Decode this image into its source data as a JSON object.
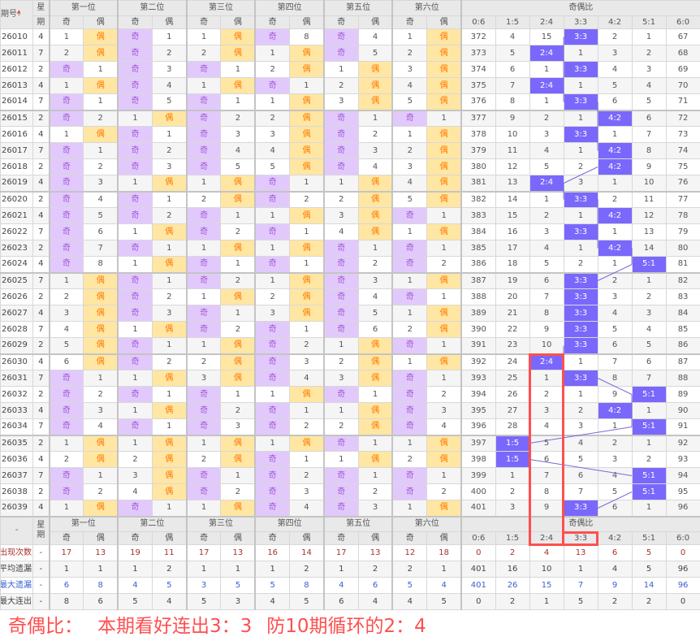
{
  "header": {
    "issue": "期号",
    "weekday": "星期",
    "weekday_top": "星",
    "weekday_bottom": "期",
    "positions": [
      "第一位",
      "第二位",
      "第三位",
      "第四位",
      "第五位",
      "第六位"
    ],
    "odd": "奇",
    "even": "偶",
    "ratio_title": "奇偶比",
    "ratios": [
      "0:6",
      "1:5",
      "2:4",
      "3:3",
      "4:2",
      "5:1",
      "6:0"
    ]
  },
  "colors": {
    "odd_bg": "#e2c9fc",
    "even_bg": "#ffe6a3",
    "hit_bg": "#7a68fc",
    "annotation": "#ff4f4f"
  },
  "rows": [
    {
      "issue": "26010",
      "wd": "4",
      "pos": [
        [
          "1",
          "偶"
        ],
        [
          "奇",
          "1"
        ],
        [
          "1",
          "偶"
        ],
        [
          "奇",
          "8"
        ],
        [
          "奇",
          "4"
        ],
        [
          "1",
          "偶"
        ]
      ],
      "ratio": [
        "372",
        "4",
        "15",
        "3:3",
        "2",
        "1",
        "67"
      ]
    },
    {
      "issue": "26011",
      "wd": "7",
      "pos": [
        [
          "2",
          "偶"
        ],
        [
          "奇",
          "2"
        ],
        [
          "2",
          "偶"
        ],
        [
          "1",
          "偶"
        ],
        [
          "奇",
          "5"
        ],
        [
          "2",
          "偶"
        ]
      ],
      "ratio": [
        "373",
        "5",
        "2:4",
        "1",
        "3",
        "2",
        "68"
      ]
    },
    {
      "issue": "26012",
      "wd": "2",
      "pos": [
        [
          "奇",
          "1"
        ],
        [
          "奇",
          "3"
        ],
        [
          "奇",
          "1"
        ],
        [
          "2",
          "偶"
        ],
        [
          "1",
          "偶"
        ],
        [
          "3",
          "偶"
        ]
      ],
      "ratio": [
        "374",
        "6",
        "1",
        "3:3",
        "4",
        "3",
        "69"
      ]
    },
    {
      "issue": "26013",
      "wd": "4",
      "pos": [
        [
          "1",
          "偶"
        ],
        [
          "奇",
          "4"
        ],
        [
          "1",
          "偶"
        ],
        [
          "奇",
          "1"
        ],
        [
          "2",
          "偶"
        ],
        [
          "4",
          "偶"
        ]
      ],
      "ratio": [
        "375",
        "7",
        "2:4",
        "1",
        "5",
        "4",
        "70"
      ]
    },
    {
      "issue": "26014",
      "wd": "7",
      "pos": [
        [
          "奇",
          "1"
        ],
        [
          "奇",
          "5"
        ],
        [
          "奇",
          "1"
        ],
        [
          "1",
          "偶"
        ],
        [
          "3",
          "偶"
        ],
        [
          "5",
          "偶"
        ]
      ],
      "ratio": [
        "376",
        "8",
        "1",
        "3:3",
        "6",
        "5",
        "71"
      ]
    },
    {
      "issue": "26015",
      "wd": "2",
      "pos": [
        [
          "奇",
          "2"
        ],
        [
          "1",
          "偶"
        ],
        [
          "奇",
          "2"
        ],
        [
          "2",
          "偶"
        ],
        [
          "奇",
          "1"
        ],
        [
          "奇",
          "1"
        ]
      ],
      "ratio": [
        "377",
        "9",
        "2",
        "1",
        "4:2",
        "6",
        "72"
      ]
    },
    {
      "issue": "26016",
      "wd": "4",
      "pos": [
        [
          "1",
          "偶"
        ],
        [
          "奇",
          "1"
        ],
        [
          "奇",
          "3"
        ],
        [
          "3",
          "偶"
        ],
        [
          "奇",
          "2"
        ],
        [
          "1",
          "偶"
        ]
      ],
      "ratio": [
        "378",
        "10",
        "3",
        "3:3",
        "1",
        "7",
        "73"
      ]
    },
    {
      "issue": "26017",
      "wd": "7",
      "pos": [
        [
          "奇",
          "1"
        ],
        [
          "奇",
          "2"
        ],
        [
          "奇",
          "4"
        ],
        [
          "4",
          "偶"
        ],
        [
          "奇",
          "3"
        ],
        [
          "2",
          "偶"
        ]
      ],
      "ratio": [
        "379",
        "11",
        "4",
        "1",
        "4:2",
        "8",
        "74"
      ]
    },
    {
      "issue": "26018",
      "wd": "2",
      "pos": [
        [
          "奇",
          "2"
        ],
        [
          "奇",
          "3"
        ],
        [
          "奇",
          "5"
        ],
        [
          "5",
          "偶"
        ],
        [
          "奇",
          "4"
        ],
        [
          "3",
          "偶"
        ]
      ],
      "ratio": [
        "380",
        "12",
        "5",
        "2",
        "4:2",
        "9",
        "75"
      ]
    },
    {
      "issue": "26019",
      "wd": "4",
      "pos": [
        [
          "奇",
          "3"
        ],
        [
          "1",
          "偶"
        ],
        [
          "1",
          "偶"
        ],
        [
          "奇",
          "1"
        ],
        [
          "1",
          "偶"
        ],
        [
          "4",
          "偶"
        ]
      ],
      "ratio": [
        "381",
        "13",
        "2:4",
        "3",
        "1",
        "10",
        "76"
      ]
    },
    {
      "issue": "26020",
      "wd": "2",
      "pos": [
        [
          "奇",
          "4"
        ],
        [
          "奇",
          "1"
        ],
        [
          "2",
          "偶"
        ],
        [
          "奇",
          "2"
        ],
        [
          "2",
          "偶"
        ],
        [
          "5",
          "偶"
        ]
      ],
      "ratio": [
        "382",
        "14",
        "1",
        "3:3",
        "2",
        "11",
        "77"
      ]
    },
    {
      "issue": "26021",
      "wd": "4",
      "pos": [
        [
          "奇",
          "5"
        ],
        [
          "奇",
          "2"
        ],
        [
          "奇",
          "1"
        ],
        [
          "1",
          "偶"
        ],
        [
          "3",
          "偶"
        ],
        [
          "奇",
          "1"
        ]
      ],
      "ratio": [
        "383",
        "15",
        "2",
        "1",
        "4:2",
        "12",
        "78"
      ]
    },
    {
      "issue": "26022",
      "wd": "7",
      "pos": [
        [
          "奇",
          "6"
        ],
        [
          "1",
          "偶"
        ],
        [
          "奇",
          "2"
        ],
        [
          "奇",
          "1"
        ],
        [
          "4",
          "偶"
        ],
        [
          "1",
          "偶"
        ]
      ],
      "ratio": [
        "384",
        "16",
        "3",
        "3:3",
        "1",
        "13",
        "79"
      ]
    },
    {
      "issue": "26023",
      "wd": "2",
      "pos": [
        [
          "奇",
          "7"
        ],
        [
          "奇",
          "1"
        ],
        [
          "1",
          "偶"
        ],
        [
          "1",
          "偶"
        ],
        [
          "奇",
          "1"
        ],
        [
          "奇",
          "1"
        ]
      ],
      "ratio": [
        "385",
        "17",
        "4",
        "1",
        "4:2",
        "14",
        "80"
      ]
    },
    {
      "issue": "26024",
      "wd": "4",
      "pos": [
        [
          "奇",
          "8"
        ],
        [
          "1",
          "偶"
        ],
        [
          "奇",
          "1"
        ],
        [
          "奇",
          "1"
        ],
        [
          "奇",
          "2"
        ],
        [
          "奇",
          "2"
        ]
      ],
      "ratio": [
        "386",
        "18",
        "5",
        "2",
        "1",
        "5:1",
        "81"
      ]
    },
    {
      "issue": "26025",
      "wd": "7",
      "pos": [
        [
          "1",
          "偶"
        ],
        [
          "奇",
          "1"
        ],
        [
          "奇",
          "2"
        ],
        [
          "1",
          "偶"
        ],
        [
          "奇",
          "3"
        ],
        [
          "1",
          "偶"
        ]
      ],
      "ratio": [
        "387",
        "19",
        "6",
        "3:3",
        "2",
        "1",
        "82"
      ]
    },
    {
      "issue": "26026",
      "wd": "2",
      "pos": [
        [
          "2",
          "偶"
        ],
        [
          "奇",
          "2"
        ],
        [
          "1",
          "偶"
        ],
        [
          "2",
          "偶"
        ],
        [
          "奇",
          "4"
        ],
        [
          "奇",
          "1"
        ]
      ],
      "ratio": [
        "388",
        "20",
        "7",
        "3:3",
        "3",
        "2",
        "83"
      ]
    },
    {
      "issue": "26027",
      "wd": "4",
      "pos": [
        [
          "3",
          "偶"
        ],
        [
          "奇",
          "3"
        ],
        [
          "奇",
          "1"
        ],
        [
          "3",
          "偶"
        ],
        [
          "奇",
          "5"
        ],
        [
          "1",
          "偶"
        ]
      ],
      "ratio": [
        "389",
        "21",
        "8",
        "3:3",
        "4",
        "3",
        "84"
      ]
    },
    {
      "issue": "26028",
      "wd": "7",
      "pos": [
        [
          "4",
          "偶"
        ],
        [
          "1",
          "偶"
        ],
        [
          "奇",
          "2"
        ],
        [
          "奇",
          "1"
        ],
        [
          "奇",
          "6"
        ],
        [
          "2",
          "偶"
        ]
      ],
      "ratio": [
        "390",
        "22",
        "9",
        "3:3",
        "5",
        "4",
        "85"
      ]
    },
    {
      "issue": "26029",
      "wd": "2",
      "pos": [
        [
          "5",
          "偶"
        ],
        [
          "奇",
          "1"
        ],
        [
          "1",
          "偶"
        ],
        [
          "奇",
          "2"
        ],
        [
          "1",
          "偶"
        ],
        [
          "奇",
          "1"
        ]
      ],
      "ratio": [
        "391",
        "23",
        "10",
        "3:3",
        "6",
        "5",
        "86"
      ]
    },
    {
      "issue": "26030",
      "wd": "4",
      "pos": [
        [
          "6",
          "偶"
        ],
        [
          "奇",
          "2"
        ],
        [
          "2",
          "偶"
        ],
        [
          "奇",
          "3"
        ],
        [
          "2",
          "偶"
        ],
        [
          "1",
          "偶"
        ]
      ],
      "ratio": [
        "392",
        "24",
        "2:4",
        "1",
        "7",
        "6",
        "87"
      ]
    },
    {
      "issue": "26031",
      "wd": "7",
      "pos": [
        [
          "奇",
          "1"
        ],
        [
          "1",
          "偶"
        ],
        [
          "3",
          "偶"
        ],
        [
          "奇",
          "4"
        ],
        [
          "3",
          "偶"
        ],
        [
          "奇",
          "1"
        ]
      ],
      "ratio": [
        "393",
        "25",
        "1",
        "3:3",
        "8",
        "7",
        "88"
      ]
    },
    {
      "issue": "26032",
      "wd": "2",
      "pos": [
        [
          "奇",
          "2"
        ],
        [
          "奇",
          "1"
        ],
        [
          "奇",
          "1"
        ],
        [
          "1",
          "偶"
        ],
        [
          "奇",
          "1"
        ],
        [
          "奇",
          "2"
        ]
      ],
      "ratio": [
        "394",
        "26",
        "2",
        "1",
        "9",
        "5:1",
        "89"
      ]
    },
    {
      "issue": "26033",
      "wd": "4",
      "pos": [
        [
          "奇",
          "3"
        ],
        [
          "1",
          "偶"
        ],
        [
          "奇",
          "2"
        ],
        [
          "奇",
          "1"
        ],
        [
          "1",
          "偶"
        ],
        [
          "奇",
          "3"
        ]
      ],
      "ratio": [
        "395",
        "27",
        "3",
        "2",
        "4:2",
        "1",
        "90"
      ]
    },
    {
      "issue": "26034",
      "wd": "7",
      "pos": [
        [
          "奇",
          "4"
        ],
        [
          "奇",
          "1"
        ],
        [
          "奇",
          "3"
        ],
        [
          "奇",
          "2"
        ],
        [
          "2",
          "偶"
        ],
        [
          "奇",
          "4"
        ]
      ],
      "ratio": [
        "396",
        "28",
        "4",
        "3",
        "1",
        "5:1",
        "91"
      ]
    },
    {
      "issue": "26035",
      "wd": "2",
      "pos": [
        [
          "1",
          "偶"
        ],
        [
          "1",
          "偶"
        ],
        [
          "1",
          "偶"
        ],
        [
          "1",
          "偶"
        ],
        [
          "奇",
          "1"
        ],
        [
          "1",
          "偶"
        ]
      ],
      "ratio": [
        "397",
        "1:5",
        "5",
        "4",
        "2",
        "1",
        "92"
      ]
    },
    {
      "issue": "26036",
      "wd": "4",
      "pos": [
        [
          "2",
          "偶"
        ],
        [
          "2",
          "偶"
        ],
        [
          "2",
          "偶"
        ],
        [
          "奇",
          "1"
        ],
        [
          "1",
          "偶"
        ],
        [
          "2",
          "偶"
        ]
      ],
      "ratio": [
        "398",
        "1:5",
        "6",
        "5",
        "3",
        "2",
        "93"
      ]
    },
    {
      "issue": "26037",
      "wd": "7",
      "pos": [
        [
          "奇",
          "1"
        ],
        [
          "3",
          "偶"
        ],
        [
          "奇",
          "1"
        ],
        [
          "奇",
          "2"
        ],
        [
          "奇",
          "1"
        ],
        [
          "奇",
          "1"
        ]
      ],
      "ratio": [
        "399",
        "1",
        "7",
        "6",
        "4",
        "5:1",
        "94"
      ]
    },
    {
      "issue": "26038",
      "wd": "2",
      "pos": [
        [
          "奇",
          "2"
        ],
        [
          "4",
          "偶"
        ],
        [
          "奇",
          "2"
        ],
        [
          "奇",
          "3"
        ],
        [
          "奇",
          "2"
        ],
        [
          "奇",
          "2"
        ]
      ],
      "ratio": [
        "400",
        "2",
        "8",
        "7",
        "5",
        "5:1",
        "95"
      ]
    },
    {
      "issue": "26039",
      "wd": "4",
      "pos": [
        [
          "1",
          "偶"
        ],
        [
          "奇",
          "1"
        ],
        [
          "1",
          "偶"
        ],
        [
          "奇",
          "4"
        ],
        [
          "奇",
          "3"
        ],
        [
          "1",
          "偶"
        ]
      ],
      "ratio": [
        "401",
        "3",
        "9",
        "3:3",
        "6",
        "1",
        "96"
      ]
    }
  ],
  "footer": {
    "dash": "-",
    "stats": [
      {
        "label": "出现次数",
        "wd": "-",
        "values": [
          "17",
          "13",
          "19",
          "11",
          "17",
          "13",
          "16",
          "14",
          "17",
          "13",
          "12",
          "18",
          "0",
          "2",
          "4",
          "13",
          "6",
          "5",
          "0"
        ]
      },
      {
        "label": "平均遗漏",
        "wd": "-",
        "values": [
          "1",
          "1",
          "1",
          "2",
          "1",
          "1",
          "1",
          "2",
          "1",
          "2",
          "2",
          "1",
          "401",
          "16",
          "10",
          "1",
          "4",
          "5",
          "96"
        ]
      },
      {
        "label": "最大遗漏",
        "wd": "-",
        "values": [
          "6",
          "8",
          "4",
          "5",
          "3",
          "5",
          "5",
          "8",
          "4",
          "6",
          "5",
          "4",
          "401",
          "26",
          "15",
          "7",
          "9",
          "14",
          "96"
        ]
      },
      {
        "label": "最大连出",
        "wd": "-",
        "values": [
          "8",
          "6",
          "5",
          "4",
          "5",
          "3",
          "4",
          "5",
          "6",
          "4",
          "4",
          "5",
          "0",
          "2",
          "1",
          "5",
          "2",
          "2",
          "0"
        ]
      }
    ]
  },
  "annotation": {
    "line1": "奇偶比：",
    "line2": "本期看好连出3：3",
    "line3": "防10期循环的2：4"
  }
}
